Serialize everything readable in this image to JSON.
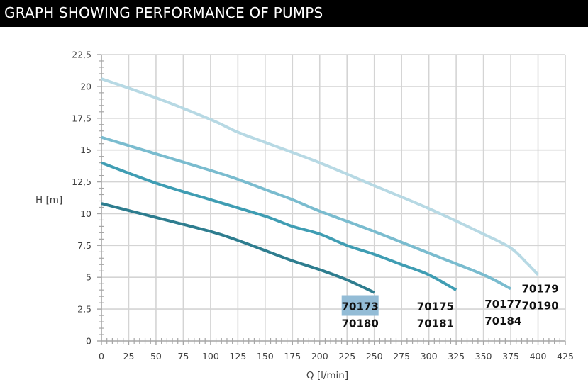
{
  "header": {
    "title": "GRAPH SHOWING PERFORMANCE OF PUMPS"
  },
  "chart_data": {
    "type": "line",
    "title": "GRAPH SHOWING PERFORMANCE OF PUMPS",
    "xlabel": "Q [l/min]",
    "ylabel": "H [m]",
    "xlim": [
      0,
      425
    ],
    "ylim": [
      0,
      22.5
    ],
    "x_ticks": [
      0,
      25,
      50,
      75,
      100,
      125,
      150,
      175,
      200,
      225,
      250,
      275,
      300,
      325,
      350,
      375,
      400,
      425
    ],
    "x_tick_labels": [
      "0",
      "25",
      "50",
      "75",
      "100",
      "125",
      "150",
      "175",
      "200",
      "225",
      "250",
      "275",
      "300",
      "325",
      "350",
      "375",
      "400",
      "425"
    ],
    "y_ticks": [
      0,
      2.5,
      5,
      7.5,
      10,
      12.5,
      15,
      17.5,
      20,
      22.5
    ],
    "y_tick_labels": [
      "0",
      "2,5",
      "5",
      "7,5",
      "10",
      "12,5",
      "15",
      "17,5",
      "20",
      "22,5"
    ],
    "grid": true,
    "legend": "inline-labels-at-curve-ends",
    "series": [
      {
        "name": "70173 / 70180",
        "labels": [
          "70173",
          "70180"
        ],
        "highlight_first_label": true,
        "highlight_color": "#93bcd6",
        "color": "#2e7d8f",
        "x": [
          0,
          50,
          100,
          125,
          150,
          175,
          200,
          225,
          250
        ],
        "y": [
          10.8,
          9.7,
          8.6,
          7.9,
          7.1,
          6.3,
          5.6,
          4.8,
          3.8
        ]
      },
      {
        "name": "70175 / 70181",
        "labels": [
          "70175",
          "70181"
        ],
        "highlight_first_label": false,
        "color": "#3f9db3",
        "x": [
          0,
          50,
          100,
          150,
          175,
          200,
          225,
          250,
          275,
          300,
          325
        ],
        "y": [
          14.0,
          12.4,
          11.1,
          9.8,
          9.0,
          8.4,
          7.5,
          6.8,
          6.0,
          5.2,
          4.0
        ]
      },
      {
        "name": "70177 / 70184",
        "labels": [
          "70177",
          "70184"
        ],
        "highlight_first_label": false,
        "color": "#7abccf",
        "x": [
          0,
          50,
          100,
          125,
          150,
          175,
          200,
          250,
          300,
          350,
          375
        ],
        "y": [
          16.0,
          14.7,
          13.4,
          12.7,
          11.9,
          11.1,
          10.2,
          8.6,
          6.9,
          5.2,
          4.1
        ]
      },
      {
        "name": "70179 / 70190",
        "labels": [
          "70179",
          "70190"
        ],
        "highlight_first_label": false,
        "color": "#b7d9e4",
        "x": [
          0,
          50,
          100,
          125,
          150,
          200,
          250,
          300,
          350,
          375,
          390,
          400
        ],
        "y": [
          20.6,
          19.1,
          17.4,
          16.4,
          15.6,
          14.0,
          12.2,
          10.4,
          8.4,
          7.3,
          6.1,
          5.2
        ]
      }
    ]
  }
}
